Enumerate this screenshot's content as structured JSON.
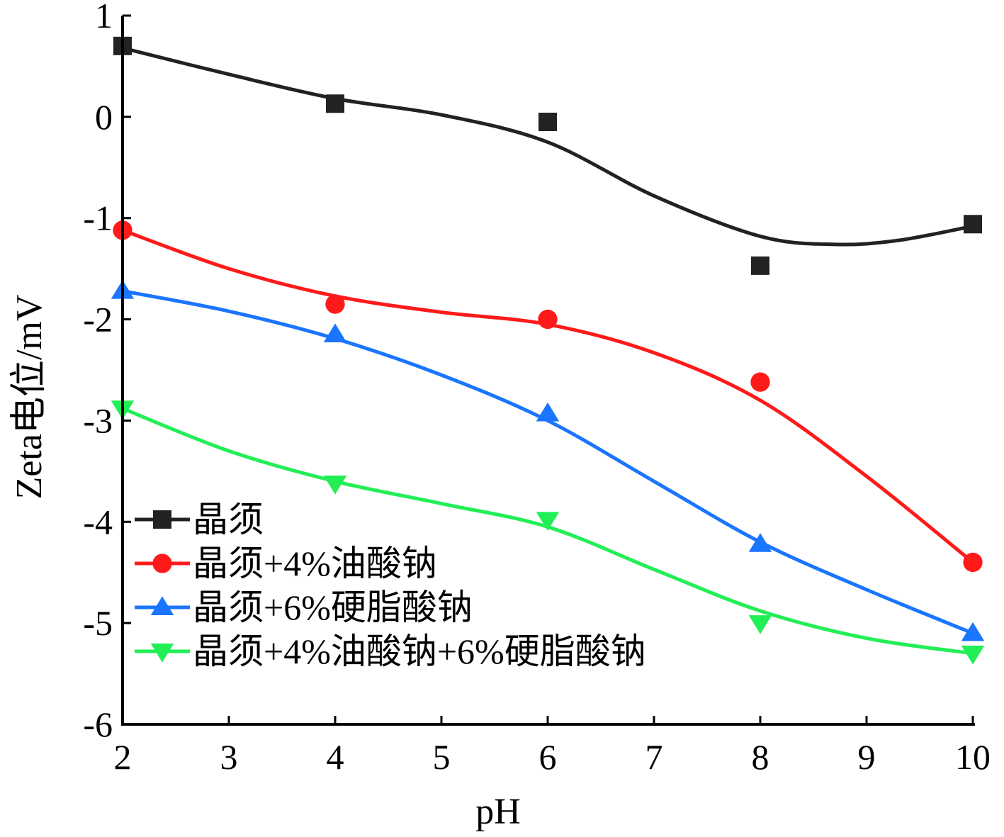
{
  "chart_data": {
    "type": "line",
    "title": "",
    "xlabel": "pH",
    "ylabel": "Zeta电位/mV",
    "xlim": [
      2,
      10
    ],
    "ylim": [
      -6,
      1
    ],
    "xticks": [
      2,
      3,
      4,
      5,
      6,
      7,
      8,
      9,
      10
    ],
    "yticks": [
      1,
      0,
      -1,
      -2,
      -3,
      -4,
      -5,
      -6
    ],
    "grid": false,
    "legend_position": "bottom-left",
    "x": [
      2,
      4,
      6,
      8,
      10
    ],
    "series": [
      {
        "name": "晶须",
        "color": "#222222",
        "marker": "square",
        "values": [
          0.7,
          0.13,
          -0.05,
          -1.47,
          -1.06
        ],
        "fit": [
          [
            2,
            0.68
          ],
          [
            3,
            0.42
          ],
          [
            4,
            0.18
          ],
          [
            5,
            0.02
          ],
          [
            6,
            -0.25
          ],
          [
            7,
            -0.78
          ],
          [
            8,
            -1.18
          ],
          [
            8.7,
            -1.26
          ],
          [
            9.3,
            -1.22
          ],
          [
            10,
            -1.08
          ]
        ]
      },
      {
        "name": "晶须+4%油酸钠",
        "color": "#ff1a1a",
        "marker": "circle",
        "values": [
          -1.12,
          -1.85,
          -2.0,
          -2.62,
          -4.4
        ],
        "fit": [
          [
            2,
            -1.12
          ],
          [
            3,
            -1.5
          ],
          [
            4,
            -1.77
          ],
          [
            5,
            -1.93
          ],
          [
            6,
            -2.05
          ],
          [
            7,
            -2.33
          ],
          [
            8,
            -2.8
          ],
          [
            9,
            -3.55
          ],
          [
            10,
            -4.4
          ]
        ]
      },
      {
        "name": "晶须+6%硬脂酸钠",
        "color": "#1a75ff",
        "marker": "triangle-up",
        "values": [
          -1.72,
          -2.15,
          -2.93,
          -4.22,
          -5.1
        ],
        "fit": [
          [
            2,
            -1.72
          ],
          [
            3,
            -1.92
          ],
          [
            4,
            -2.19
          ],
          [
            5,
            -2.55
          ],
          [
            6,
            -3.0
          ],
          [
            7,
            -3.6
          ],
          [
            8,
            -4.2
          ],
          [
            9,
            -4.67
          ],
          [
            10,
            -5.1
          ]
        ]
      },
      {
        "name": "晶须+4%油酸钠+6%硬脂酸钠",
        "color": "#22ee55",
        "marker": "triangle-down",
        "values": [
          -2.88,
          -3.62,
          -3.98,
          -5.0,
          -5.3
        ],
        "fit": [
          [
            2,
            -2.88
          ],
          [
            3,
            -3.3
          ],
          [
            4,
            -3.6
          ],
          [
            5,
            -3.82
          ],
          [
            6,
            -4.05
          ],
          [
            7,
            -4.47
          ],
          [
            8,
            -4.88
          ],
          [
            9,
            -5.15
          ],
          [
            10,
            -5.3
          ]
        ]
      }
    ]
  }
}
